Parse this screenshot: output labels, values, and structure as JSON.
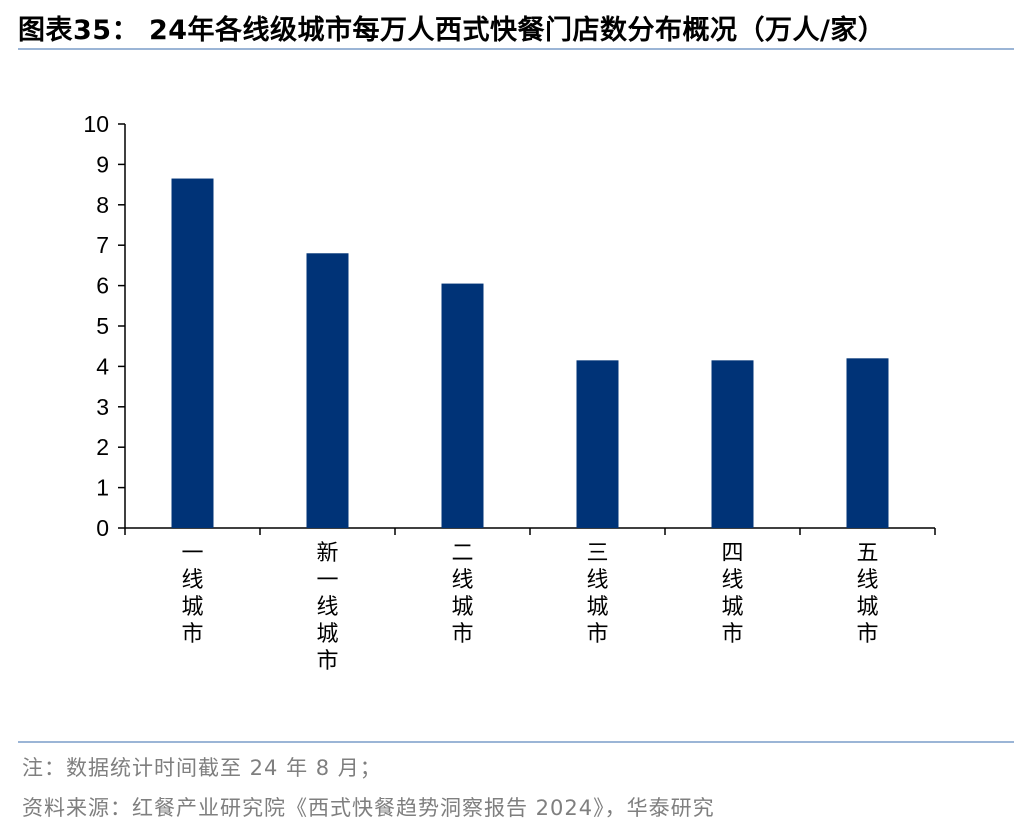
{
  "title": "图表35： 24年各线级城市每万人西式快餐门店数分布概况（万人/家）",
  "note": "注：数据统计时间截至 24 年 8 月；",
  "source": "资料来源：红餐产业研究院《西式快餐趋势洞察报告 2024》，华泰研究",
  "colors": {
    "bar": "#003377",
    "rule": "#9bb5d6",
    "footer_text": "#7f7f7f"
  },
  "chart_data": {
    "type": "bar",
    "categories": [
      "一线城市",
      "新一线城市",
      "二线城市",
      "三线城市",
      "四线城市",
      "五线城市"
    ],
    "values": [
      8.65,
      6.8,
      6.05,
      4.15,
      4.15,
      4.2
    ],
    "title": "",
    "xlabel": "",
    "ylabel": "",
    "ylim": [
      0,
      10
    ],
    "yticks": [
      "0",
      "1",
      "2",
      "3",
      "4",
      "5",
      "6",
      "7",
      "8",
      "9",
      "10"
    ],
    "grid": false,
    "legend": "none"
  }
}
